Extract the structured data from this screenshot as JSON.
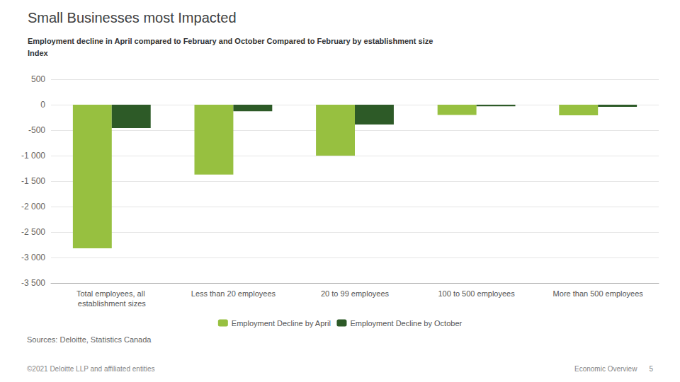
{
  "chart_data": {
    "type": "bar",
    "title": "Small Businesses most Impacted",
    "subtitle": [
      "Employment decline in April compared to February and October Compared to February by establishment size",
      "Index"
    ],
    "categories": [
      "Total employees, all establishment sizes",
      "Less than 20 employees",
      "20 to 99 employees",
      "100 to 500 employees",
      "More than 500 employees"
    ],
    "series": [
      {
        "name": "Employment Decline by April",
        "color": "#97C040",
        "values": [
          -2820,
          -1370,
          -1000,
          -200,
          -210
        ]
      },
      {
        "name": "Employment Decline by October",
        "color": "#2D5A27",
        "values": [
          -460,
          -130,
          -390,
          -30,
          -40
        ]
      }
    ],
    "ylim": [
      -3500,
      500
    ],
    "yticks": [
      500,
      0,
      -500,
      {
        "value": -1000,
        "label": "-1 000"
      },
      {
        "value": -1500,
        "label": "-1 500"
      },
      {
        "value": -2000,
        "label": "-2 000"
      },
      {
        "value": -2500,
        "label": "-2 500"
      },
      {
        "value": -3000,
        "label": "-3 000"
      },
      {
        "value": -3500,
        "label": "-3 500"
      }
    ],
    "grid": true,
    "legend": "bottom",
    "annotations": [
      "Sources: Deloitte, Statistics Canada",
      "©2021 Deloitte LLP and affiliated entities",
      "Economic Overview",
      "5"
    ]
  }
}
